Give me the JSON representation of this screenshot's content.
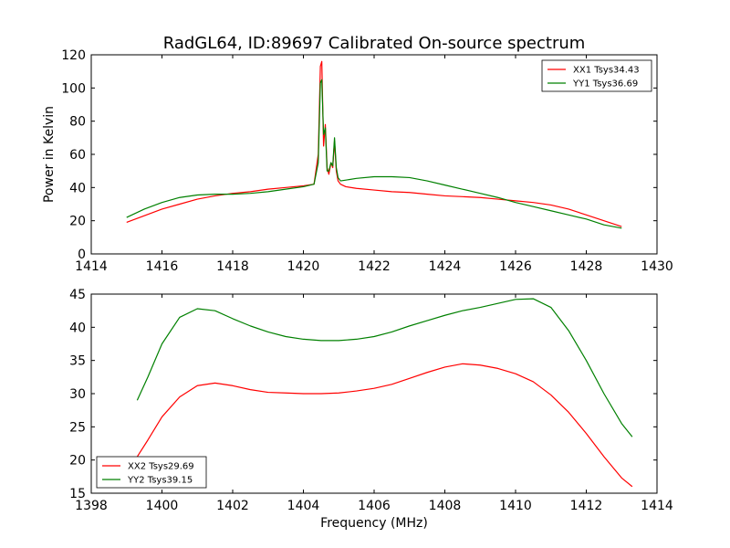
{
  "figure": {
    "title": "RadGL64, ID:89697 Calibrated On-source spectrum",
    "ylabel": "Power in Kelvin",
    "xlabel": "Frequency (MHz)"
  },
  "colors": {
    "red": "#ff0000",
    "green": "#008000"
  },
  "chart_data": [
    {
      "type": "line",
      "xlim": [
        1414,
        1430
      ],
      "ylim": [
        0,
        120
      ],
      "xticks": [
        1414,
        1416,
        1418,
        1420,
        1422,
        1424,
        1426,
        1428,
        1430
      ],
      "yticks": [
        0,
        20,
        40,
        60,
        80,
        100,
        120
      ],
      "legend_position": "top-right",
      "series": [
        {
          "name": "XX1 Tsys34.43",
          "color": "#ff0000",
          "x": [
            1415.0,
            1415.5,
            1416.0,
            1416.5,
            1417.0,
            1417.5,
            1418.0,
            1418.5,
            1419.0,
            1419.5,
            1420.0,
            1420.3,
            1420.42,
            1420.48,
            1420.52,
            1420.57,
            1420.62,
            1420.67,
            1420.72,
            1420.78,
            1420.83,
            1420.88,
            1420.93,
            1420.98,
            1421.05,
            1421.2,
            1421.5,
            1422.0,
            1422.5,
            1423.0,
            1423.5,
            1424.0,
            1424.5,
            1425.0,
            1425.5,
            1426.0,
            1426.5,
            1427.0,
            1427.5,
            1428.0,
            1428.5,
            1429.0
          ],
          "y": [
            19,
            23,
            27,
            30,
            33,
            35,
            36.5,
            37.5,
            39,
            40,
            41,
            42,
            60,
            113,
            116,
            65,
            78,
            52,
            48,
            55,
            52,
            68,
            50,
            44,
            42,
            40.5,
            39.5,
            38.5,
            37.5,
            37,
            36,
            35,
            34.5,
            34,
            33,
            32,
            31,
            29.5,
            27,
            23.5,
            20,
            16.5
          ]
        },
        {
          "name": "YY1 Tsys36.69",
          "color": "#008000",
          "x": [
            1415.0,
            1415.5,
            1416.0,
            1416.5,
            1417.0,
            1417.5,
            1418.0,
            1418.5,
            1419.0,
            1419.5,
            1420.0,
            1420.3,
            1420.42,
            1420.48,
            1420.52,
            1420.57,
            1420.62,
            1420.67,
            1420.72,
            1420.78,
            1420.83,
            1420.88,
            1420.93,
            1420.98,
            1421.05,
            1421.2,
            1421.5,
            1422.0,
            1422.5,
            1423.0,
            1423.5,
            1424.0,
            1424.5,
            1425.0,
            1425.5,
            1426.0,
            1426.5,
            1427.0,
            1427.5,
            1428.0,
            1428.5,
            1429.0
          ],
          "y": [
            22,
            27,
            31,
            34,
            35.5,
            36,
            36,
            36.5,
            37.5,
            39,
            40.5,
            42,
            55,
            103,
            105,
            72,
            76,
            50,
            50,
            55,
            53,
            70,
            52,
            46,
            44,
            44.5,
            45.5,
            46.5,
            46.5,
            46,
            44,
            41.5,
            39,
            36.5,
            34,
            31,
            28.5,
            26,
            23.5,
            21,
            17.5,
            15.5
          ]
        }
      ]
    },
    {
      "type": "line",
      "xlim": [
        1398,
        1414
      ],
      "ylim": [
        15,
        45
      ],
      "xticks": [
        1398,
        1400,
        1402,
        1404,
        1406,
        1408,
        1410,
        1412,
        1414
      ],
      "yticks": [
        15,
        20,
        25,
        30,
        35,
        40,
        45
      ],
      "legend_position": "bottom-left",
      "series": [
        {
          "name": "XX2 Tsys29.69",
          "color": "#ff0000",
          "x": [
            1399.3,
            1399.6,
            1400.0,
            1400.5,
            1401.0,
            1401.5,
            1402.0,
            1402.5,
            1403.0,
            1403.5,
            1404.0,
            1404.5,
            1405.0,
            1405.5,
            1406.0,
            1406.5,
            1407.0,
            1407.5,
            1408.0,
            1408.5,
            1409.0,
            1409.5,
            1410.0,
            1410.5,
            1411.0,
            1411.5,
            1412.0,
            1412.5,
            1413.0,
            1413.3
          ],
          "y": [
            20.5,
            23,
            26.5,
            29.5,
            31.2,
            31.6,
            31.2,
            30.6,
            30.2,
            30.1,
            30.0,
            30.0,
            30.1,
            30.4,
            30.8,
            31.4,
            32.3,
            33.2,
            34.0,
            34.5,
            34.3,
            33.8,
            33.0,
            31.8,
            29.8,
            27.2,
            24.0,
            20.5,
            17.3,
            16.0
          ]
        },
        {
          "name": "YY2 Tsys39.15",
          "color": "#008000",
          "x": [
            1399.3,
            1399.6,
            1400.0,
            1400.5,
            1401.0,
            1401.5,
            1402.0,
            1402.5,
            1403.0,
            1403.5,
            1404.0,
            1404.5,
            1405.0,
            1405.5,
            1406.0,
            1406.5,
            1407.0,
            1407.5,
            1408.0,
            1408.5,
            1409.0,
            1409.5,
            1410.0,
            1410.5,
            1411.0,
            1411.5,
            1412.0,
            1412.5,
            1413.0,
            1413.3
          ],
          "y": [
            29.0,
            32.5,
            37.5,
            41.5,
            42.8,
            42.5,
            41.3,
            40.2,
            39.3,
            38.6,
            38.2,
            38.0,
            38.0,
            38.2,
            38.6,
            39.3,
            40.2,
            41.0,
            41.8,
            42.5,
            43.0,
            43.6,
            44.2,
            44.3,
            43.0,
            39.5,
            35.0,
            30.0,
            25.5,
            23.5
          ]
        }
      ]
    }
  ]
}
